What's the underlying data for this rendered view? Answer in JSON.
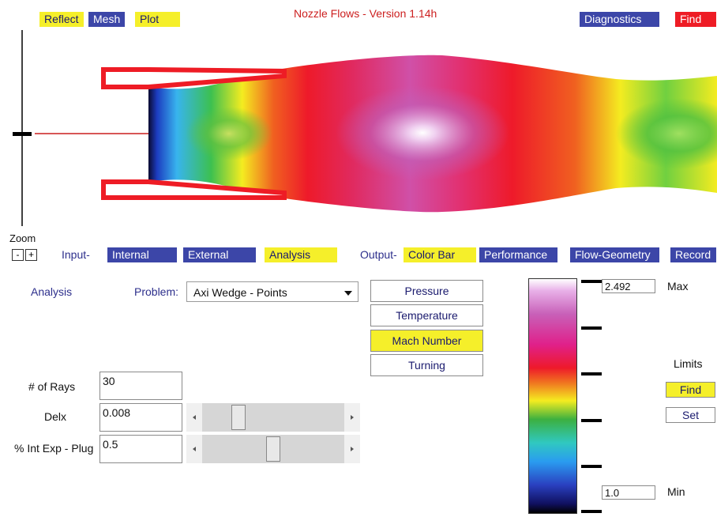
{
  "title": "Nozzle Flows - Version 1.14h",
  "top_buttons": {
    "reflect": "Reflect",
    "mesh": "Mesh",
    "plot": "Plot",
    "diagnostics": "Diagnostics",
    "find": "Find"
  },
  "zoom": {
    "label": "Zoom",
    "minus": "-",
    "plus": "+"
  },
  "input": {
    "label": "Input-",
    "tabs": [
      "Internal",
      "External",
      "Analysis"
    ],
    "active": "Analysis"
  },
  "output": {
    "label": "Output-",
    "tabs": [
      "Color Bar",
      "Performance",
      "Flow-Geometry",
      "Record"
    ],
    "active": "Color Bar"
  },
  "analysis": {
    "heading": "Analysis",
    "problem_label": "Problem:",
    "problem_value": "Axi Wedge - Points",
    "rays_label": "# of Rays",
    "rays_value": "30",
    "delx_label": "Delx",
    "delx_value": "0.008",
    "plug_label": "% Int Exp - Plug",
    "plug_value": "0.5",
    "delx_slider_fraction": 0.23,
    "plug_slider_fraction": 0.5
  },
  "output_buttons": [
    "Pressure",
    "Temperature",
    "Mach Number",
    "Turning"
  ],
  "output_selected": "Mach Number",
  "colorbar": {
    "max_label": "Max",
    "max_value": "2.492",
    "min_label": "Min",
    "min_value": "1.0",
    "limits_label": "Limits",
    "find_label": "Find",
    "set_label": "Set"
  },
  "colors": {
    "accent_yellow": "#f5ef2a",
    "accent_blue": "#3c46a8",
    "accent_red": "#ee1c25",
    "title_red": "#cc1f1f"
  }
}
